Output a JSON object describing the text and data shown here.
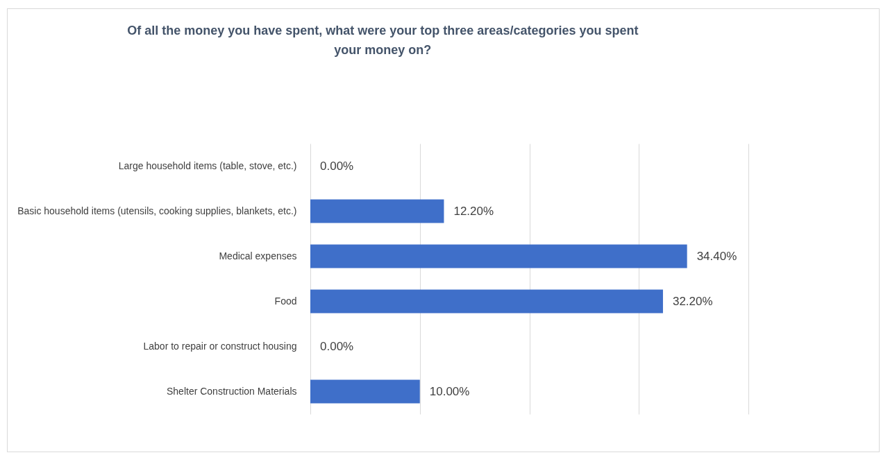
{
  "chart_data": {
    "type": "bar",
    "orientation": "horizontal",
    "title": "Of all the money you have spent, what were your top three areas/categories you spent your money on?",
    "categories": [
      "Large household items (table, stove, etc.)",
      "Basic household items (utensils, cooking supplies, blankets, etc.)",
      "Medical expenses",
      "Food",
      "Labor to repair or construct housing",
      "Shelter Construction Materials"
    ],
    "values": [
      0,
      12.2,
      34.4,
      32.2,
      0,
      10
    ],
    "value_labels": [
      "0.00%",
      "12.20%",
      "34.40%",
      "32.20%",
      "0.00%",
      "10.00%"
    ],
    "color": "#3f6fc9",
    "xlim": [
      0,
      40
    ],
    "xticks": [
      {
        "value": 0,
        "label": null
      },
      {
        "value": 10,
        "label": null
      },
      {
        "value": 20,
        "label": null
      },
      {
        "value": 30,
        "label": null
      },
      {
        "value": 40,
        "label": null
      }
    ],
    "grid": "x",
    "tick_labels": "y"
  }
}
